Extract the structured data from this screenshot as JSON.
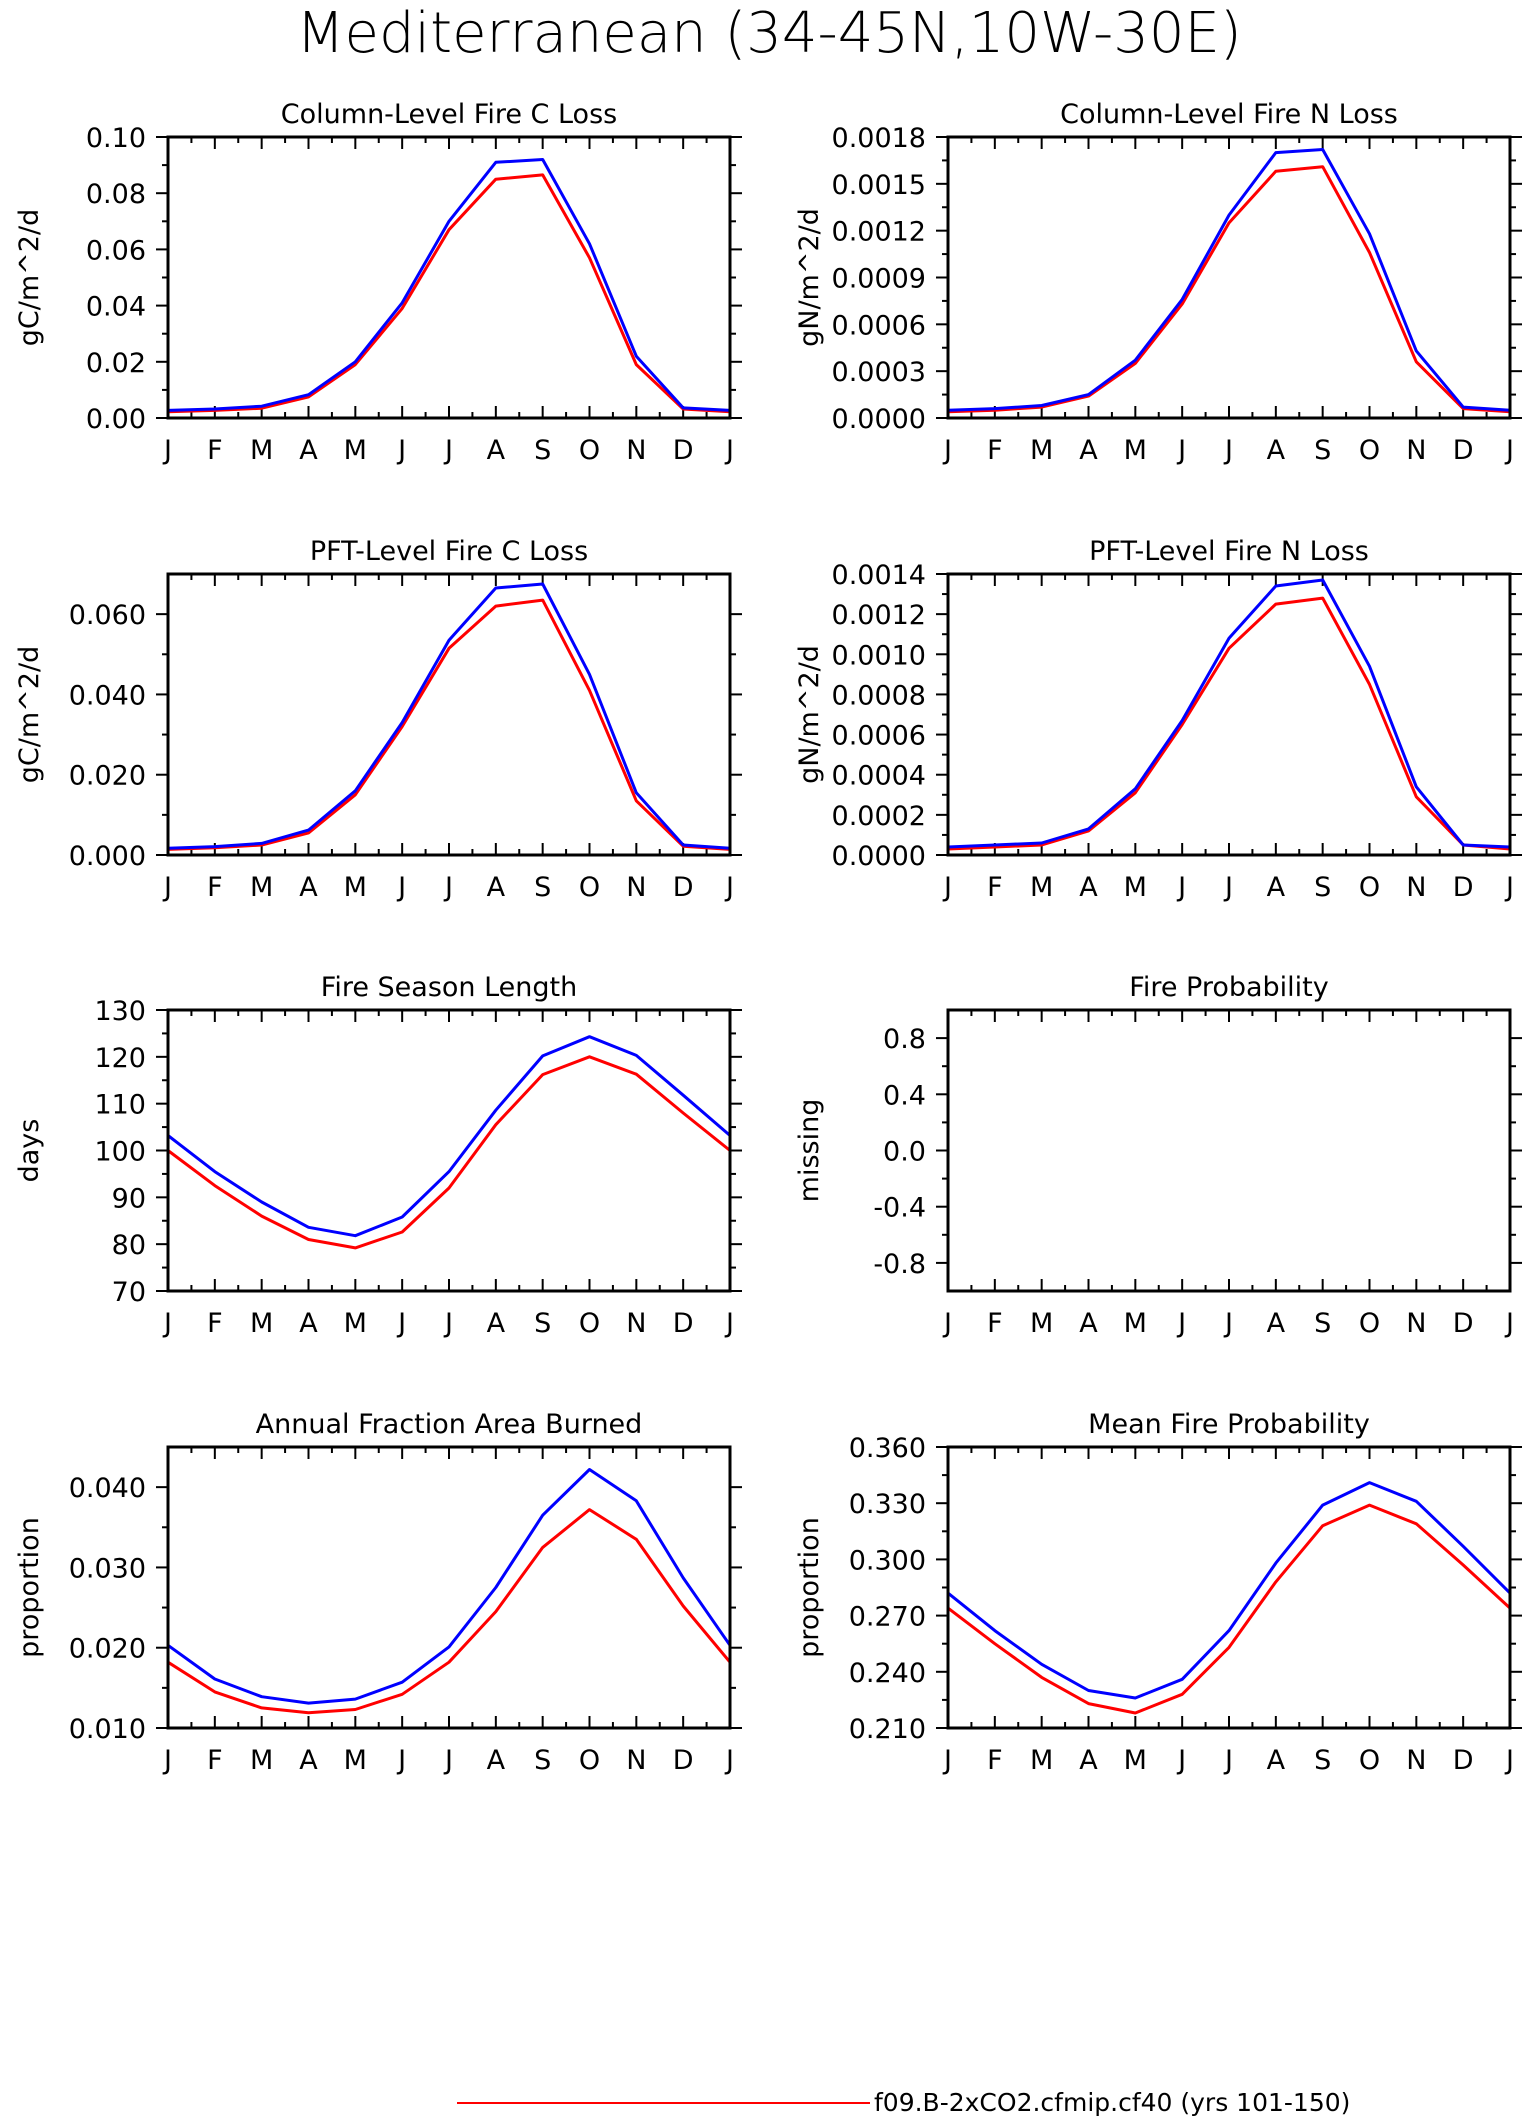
{
  "title": "Mediterranean (34-45N,10W-30E)",
  "colors": {
    "series_red": "#ff0000",
    "series_blue": "#0000ff",
    "axis": "#000000"
  },
  "legend": {
    "label": "f09.B-2xCO2.cfmip.cf40 (yrs 101-150)",
    "color": "#ff0000"
  },
  "chart_data": [
    {
      "type": "line",
      "title": "Column-Level Fire C Loss",
      "ylabel": "gC/m^2/d",
      "categories": [
        "J",
        "F",
        "M",
        "A",
        "M",
        "J",
        "J",
        "A",
        "S",
        "O",
        "N",
        "D",
        "J"
      ],
      "ylim": [
        0,
        0.1
      ],
      "yticks": [
        "0.00",
        "0.02",
        "0.04",
        "0.06",
        "0.08",
        "0.10"
      ],
      "series": [
        {
          "color": "#ff0000",
          "values": [
            0.0022,
            0.0027,
            0.0035,
            0.0075,
            0.019,
            0.039,
            0.067,
            0.085,
            0.0865,
            0.057,
            0.019,
            0.0032,
            0.0022
          ]
        },
        {
          "color": "#0000ff",
          "values": [
            0.0027,
            0.0032,
            0.0042,
            0.0083,
            0.02,
            0.041,
            0.07,
            0.091,
            0.092,
            0.062,
            0.022,
            0.0036,
            0.0027
          ]
        }
      ]
    },
    {
      "type": "line",
      "title": "Column-Level Fire N Loss",
      "ylabel": "gN/m^2/d",
      "categories": [
        "J",
        "F",
        "M",
        "A",
        "M",
        "J",
        "J",
        "A",
        "S",
        "O",
        "N",
        "D",
        "J"
      ],
      "ylim": [
        0,
        0.0018
      ],
      "yticks": [
        "0.0000",
        "0.0003",
        "0.0006",
        "0.0009",
        "0.0012",
        "0.0015",
        "0.0018"
      ],
      "series": [
        {
          "color": "#ff0000",
          "values": [
            4e-05,
            5e-05,
            7e-05,
            0.00014,
            0.00035,
            0.00073,
            0.00125,
            0.00158,
            0.00161,
            0.00106,
            0.00036,
            6e-05,
            4e-05
          ]
        },
        {
          "color": "#0000ff",
          "values": [
            5e-05,
            6e-05,
            8e-05,
            0.00015,
            0.00037,
            0.00076,
            0.0013,
            0.0017,
            0.00172,
            0.00118,
            0.00043,
            7e-05,
            5e-05
          ]
        }
      ]
    },
    {
      "type": "line",
      "title": "PFT-Level Fire C Loss",
      "ylabel": "gC/m^2/d",
      "categories": [
        "J",
        "F",
        "M",
        "A",
        "M",
        "J",
        "J",
        "A",
        "S",
        "O",
        "N",
        "D",
        "J"
      ],
      "ylim": [
        0,
        0.07
      ],
      "yticks": [
        "0.000",
        "0.020",
        "0.040",
        "0.060"
      ],
      "series": [
        {
          "color": "#ff0000",
          "values": [
            0.0014,
            0.0018,
            0.0025,
            0.0055,
            0.015,
            0.032,
            0.0515,
            0.062,
            0.0635,
            0.041,
            0.0135,
            0.0022,
            0.0014
          ]
        },
        {
          "color": "#0000ff",
          "values": [
            0.0017,
            0.0021,
            0.0029,
            0.0062,
            0.016,
            0.033,
            0.0535,
            0.0665,
            0.0675,
            0.045,
            0.0155,
            0.0025,
            0.0017
          ]
        }
      ]
    },
    {
      "type": "line",
      "title": "PFT-Level Fire N Loss",
      "ylabel": "gN/m^2/d",
      "categories": [
        "J",
        "F",
        "M",
        "A",
        "M",
        "J",
        "J",
        "A",
        "S",
        "O",
        "N",
        "D",
        "J"
      ],
      "ylim": [
        0,
        0.0014
      ],
      "yticks": [
        "0.0000",
        "0.0002",
        "0.0004",
        "0.0006",
        "0.0008",
        "0.0010",
        "0.0012",
        "0.0014"
      ],
      "series": [
        {
          "color": "#ff0000",
          "values": [
            3e-05,
            4e-05,
            5e-05,
            0.00012,
            0.00031,
            0.00065,
            0.00103,
            0.00125,
            0.00128,
            0.00085,
            0.00029,
            5e-05,
            3e-05
          ]
        },
        {
          "color": "#0000ff",
          "values": [
            4e-05,
            5e-05,
            6e-05,
            0.00013,
            0.00033,
            0.00067,
            0.00108,
            0.00134,
            0.00137,
            0.00094,
            0.00034,
            5e-05,
            4e-05
          ]
        }
      ]
    },
    {
      "type": "line",
      "title": "Fire Season Length",
      "ylabel": "days",
      "categories": [
        "J",
        "F",
        "M",
        "A",
        "M",
        "J",
        "J",
        "A",
        "S",
        "O",
        "N",
        "D",
        "J"
      ],
      "ylim": [
        70,
        130
      ],
      "yticks": [
        "70",
        "80",
        "90",
        "100",
        "110",
        "120",
        "130"
      ],
      "series": [
        {
          "color": "#ff0000",
          "values": [
            100,
            92.5,
            86,
            81,
            79.2,
            82.6,
            92,
            105.5,
            116.2,
            120,
            116.3,
            108,
            100
          ]
        },
        {
          "color": "#0000ff",
          "values": [
            103.2,
            95.5,
            89,
            83.6,
            81.8,
            85.8,
            95.5,
            108.6,
            120.2,
            124.3,
            120.3,
            111.8,
            103.2
          ]
        }
      ]
    },
    {
      "type": "line",
      "title": "Fire Probability",
      "ylabel": "missing",
      "categories": [
        "J",
        "F",
        "M",
        "A",
        "M",
        "J",
        "J",
        "A",
        "S",
        "O",
        "N",
        "D",
        "J"
      ],
      "ylim": [
        -1,
        1
      ],
      "yticks": [
        "-0.8",
        "-0.4",
        "0.0",
        "0.4",
        "0.8"
      ],
      "series": []
    },
    {
      "type": "line",
      "title": "Annual Fraction Area Burned",
      "ylabel": "proportion",
      "categories": [
        "J",
        "F",
        "M",
        "A",
        "M",
        "J",
        "J",
        "A",
        "S",
        "O",
        "N",
        "D",
        "J"
      ],
      "ylim": [
        0.01,
        0.045
      ],
      "yticks": [
        "0.010",
        "0.020",
        "0.030",
        "0.040"
      ],
      "series": [
        {
          "color": "#ff0000",
          "values": [
            0.0182,
            0.0145,
            0.0125,
            0.0119,
            0.0123,
            0.0142,
            0.0182,
            0.0245,
            0.0325,
            0.0372,
            0.0335,
            0.0252,
            0.0182
          ]
        },
        {
          "color": "#0000ff",
          "values": [
            0.0203,
            0.0161,
            0.0139,
            0.0131,
            0.0136,
            0.0157,
            0.0201,
            0.0275,
            0.0365,
            0.0422,
            0.0383,
            0.0287,
            0.0203
          ]
        }
      ]
    },
    {
      "type": "line",
      "title": "Mean Fire Probability",
      "ylabel": "proportion",
      "categories": [
        "J",
        "F",
        "M",
        "A",
        "M",
        "J",
        "J",
        "A",
        "S",
        "O",
        "N",
        "D",
        "J"
      ],
      "ylim": [
        0.21,
        0.36
      ],
      "yticks": [
        "0.210",
        "0.240",
        "0.270",
        "0.300",
        "0.330",
        "0.360"
      ],
      "series": [
        {
          "color": "#ff0000",
          "values": [
            0.274,
            0.255,
            0.237,
            0.223,
            0.218,
            0.228,
            0.253,
            0.288,
            0.318,
            0.329,
            0.319,
            0.297,
            0.274
          ]
        },
        {
          "color": "#0000ff",
          "values": [
            0.282,
            0.262,
            0.244,
            0.23,
            0.226,
            0.236,
            0.262,
            0.298,
            0.329,
            0.341,
            0.331,
            0.307,
            0.282
          ]
        }
      ]
    }
  ]
}
